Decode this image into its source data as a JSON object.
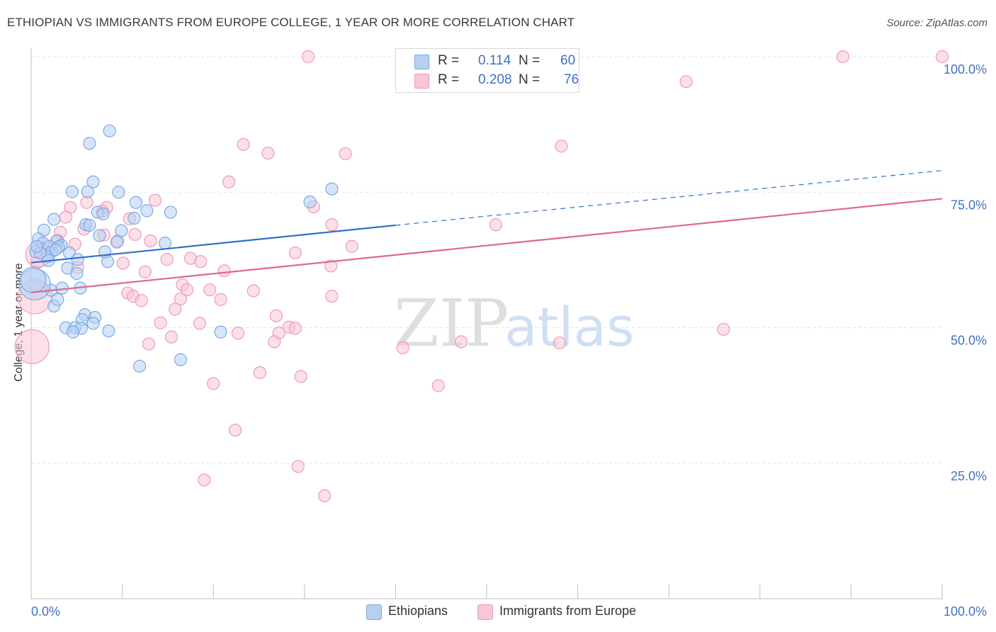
{
  "title": "ETHIOPIAN VS IMMIGRANTS FROM EUROPE COLLEGE, 1 YEAR OR MORE CORRELATION CHART",
  "source": "Source: ZipAtlas.com",
  "watermark": {
    "zip": "ZIP",
    "atlas": "atlas"
  },
  "legend": {
    "r_label": "R =",
    "n_label": "N =",
    "ethiopians": {
      "r": "0.114",
      "n": "60"
    },
    "europe": {
      "r": "0.208",
      "n": "76"
    }
  },
  "chart_data": {
    "type": "scatter",
    "title": "ETHIOPIAN VS IMMIGRANTS FROM EUROPE COLLEGE, 1 YEAR OR MORE CORRELATION CHART",
    "xlabel": "",
    "ylabel": "College, 1 year or more",
    "xlim": [
      0,
      100
    ],
    "ylim": [
      0,
      100
    ],
    "x_tick_labels": {
      "left": "0.0%",
      "right": "100.0%"
    },
    "y_tick_labels": [
      {
        "value": 100,
        "label": "100.0%"
      },
      {
        "value": 75,
        "label": "75.0%"
      },
      {
        "value": 50,
        "label": "50.0%"
      },
      {
        "value": 25,
        "label": "25.0%"
      }
    ],
    "grid": true,
    "series": [
      {
        "name": "Ethiopians",
        "color": "#7aaae6",
        "trend_color": "#2f6fce",
        "r": 0.114,
        "n": 60,
        "trend": {
          "x0": 0,
          "y0": 62.0,
          "x1": 40,
          "y1": 68.9,
          "dash_to_x": 100,
          "dash_to_y": 79.0
        },
        "points": [
          [
            8.6,
            86.3
          ],
          [
            6.4,
            84.0
          ],
          [
            6.8,
            76.9
          ],
          [
            4.5,
            75.1
          ],
          [
            6.2,
            75.1
          ],
          [
            9.6,
            75.0
          ],
          [
            11.5,
            73.1
          ],
          [
            7.3,
            71.3
          ],
          [
            12.7,
            71.6
          ],
          [
            11.3,
            70.2
          ],
          [
            2.5,
            70.0
          ],
          [
            6.0,
            69.0
          ],
          [
            1.4,
            68.0
          ],
          [
            9.9,
            67.9
          ],
          [
            0.8,
            66.4
          ],
          [
            2.8,
            66.0
          ],
          [
            1.3,
            65.6
          ],
          [
            7.5,
            67.0
          ],
          [
            3.3,
            65.2
          ],
          [
            2.0,
            65.0
          ],
          [
            2.2,
            63.9
          ],
          [
            0.5,
            64.0
          ],
          [
            1.8,
            63.1
          ],
          [
            4.2,
            63.8
          ],
          [
            5.1,
            62.6
          ],
          [
            8.4,
            62.2
          ],
          [
            9.4,
            65.8
          ],
          [
            14.7,
            65.6
          ],
          [
            3.0,
            64.9
          ],
          [
            8.1,
            64.0
          ],
          [
            4.0,
            61.0
          ],
          [
            5.0,
            60.0
          ],
          [
            2.2,
            56.9
          ],
          [
            3.4,
            57.3
          ],
          [
            5.4,
            57.3
          ],
          [
            2.5,
            54.0
          ],
          [
            2.9,
            55.2
          ],
          [
            5.9,
            52.4
          ],
          [
            7.0,
            51.9
          ],
          [
            3.8,
            50.0
          ],
          [
            5.6,
            51.5
          ],
          [
            6.8,
            50.8
          ],
          [
            8.5,
            49.4
          ],
          [
            4.8,
            50.0
          ],
          [
            5.5,
            49.9
          ],
          [
            4.6,
            49.2
          ],
          [
            11.9,
            42.9
          ],
          [
            16.4,
            44.1
          ],
          [
            20.8,
            49.2
          ],
          [
            30.6,
            73.2
          ],
          [
            33.0,
            75.6
          ],
          [
            1.0,
            63.8
          ],
          [
            0.4,
            58.0
          ],
          [
            0.2,
            58.8
          ],
          [
            0.6,
            65.0
          ],
          [
            1.9,
            62.4
          ],
          [
            2.7,
            64.4
          ],
          [
            15.3,
            71.3
          ],
          [
            7.9,
            71.0
          ],
          [
            6.4,
            68.9
          ]
        ]
      },
      {
        "name": "Immigrants from Europe",
        "color": "#f4a6c0",
        "trend_color": "#e0678f",
        "r": 0.208,
        "n": 76,
        "trend": {
          "x0": 0,
          "y0": 56.5,
          "x1": 100,
          "y1": 73.8
        },
        "points": [
          [
            30.4,
            100.0
          ],
          [
            89.1,
            100.0
          ],
          [
            100.0,
            100.0
          ],
          [
            71.9,
            95.4
          ],
          [
            23.3,
            83.8
          ],
          [
            58.2,
            83.5
          ],
          [
            26.0,
            82.2
          ],
          [
            34.5,
            82.1
          ],
          [
            21.7,
            76.9
          ],
          [
            13.6,
            73.5
          ],
          [
            6.1,
            73.1
          ],
          [
            8.3,
            72.2
          ],
          [
            4.3,
            72.2
          ],
          [
            7.8,
            71.5
          ],
          [
            3.8,
            70.4
          ],
          [
            10.8,
            70.1
          ],
          [
            31.0,
            72.3
          ],
          [
            5.8,
            68.2
          ],
          [
            3.2,
            67.6
          ],
          [
            8.0,
            67.1
          ],
          [
            33.0,
            69.0
          ],
          [
            51.0,
            69.0
          ],
          [
            11.4,
            67.2
          ],
          [
            9.5,
            66.0
          ],
          [
            13.1,
            66.0
          ],
          [
            4.8,
            65.4
          ],
          [
            2.1,
            64.7
          ],
          [
            35.2,
            65.0
          ],
          [
            29.0,
            63.8
          ],
          [
            17.5,
            62.8
          ],
          [
            14.9,
            62.6
          ],
          [
            10.1,
            61.9
          ],
          [
            18.6,
            62.2
          ],
          [
            5.1,
            61.1
          ],
          [
            32.9,
            61.4
          ],
          [
            21.2,
            60.5
          ],
          [
            12.5,
            60.3
          ],
          [
            0.6,
            61.9
          ],
          [
            16.6,
            57.9
          ],
          [
            17.1,
            57.0
          ],
          [
            19.6,
            57.0
          ],
          [
            24.4,
            56.8
          ],
          [
            10.6,
            56.4
          ],
          [
            11.2,
            55.8
          ],
          [
            12.1,
            55.0
          ],
          [
            16.4,
            55.3
          ],
          [
            20.8,
            55.2
          ],
          [
            33.0,
            55.8
          ],
          [
            15.8,
            53.4
          ],
          [
            26.9,
            52.2
          ],
          [
            14.2,
            50.9
          ],
          [
            18.5,
            50.8
          ],
          [
            28.3,
            50.1
          ],
          [
            29.0,
            49.9
          ],
          [
            27.2,
            49.0
          ],
          [
            22.7,
            49.0
          ],
          [
            15.4,
            48.3
          ],
          [
            76.0,
            49.7
          ],
          [
            26.7,
            47.4
          ],
          [
            47.2,
            47.4
          ],
          [
            58.0,
            47.2
          ],
          [
            12.9,
            47.0
          ],
          [
            40.8,
            46.3
          ],
          [
            25.1,
            41.7
          ],
          [
            29.6,
            41.0
          ],
          [
            20.0,
            39.7
          ],
          [
            44.7,
            39.3
          ],
          [
            22.4,
            31.1
          ],
          [
            29.3,
            24.4
          ],
          [
            19.0,
            21.9
          ],
          [
            32.2,
            19.0
          ],
          [
            0.4,
            55.7
          ],
          [
            0.1,
            46.5
          ],
          [
            0.8,
            63.5
          ],
          [
            1.4,
            64.2
          ],
          [
            2.9,
            66.1
          ]
        ]
      }
    ]
  },
  "bottom_legend": {
    "ethiopians": "Ethiopians",
    "europe": "Immigrants from Europe"
  },
  "colors": {
    "blue_fill": "#b7d0f2",
    "blue_stroke": "#7aaae6",
    "pink_fill": "#f8c6d6",
    "pink_stroke": "#f09ab7",
    "tick_text": "#4472c4"
  }
}
